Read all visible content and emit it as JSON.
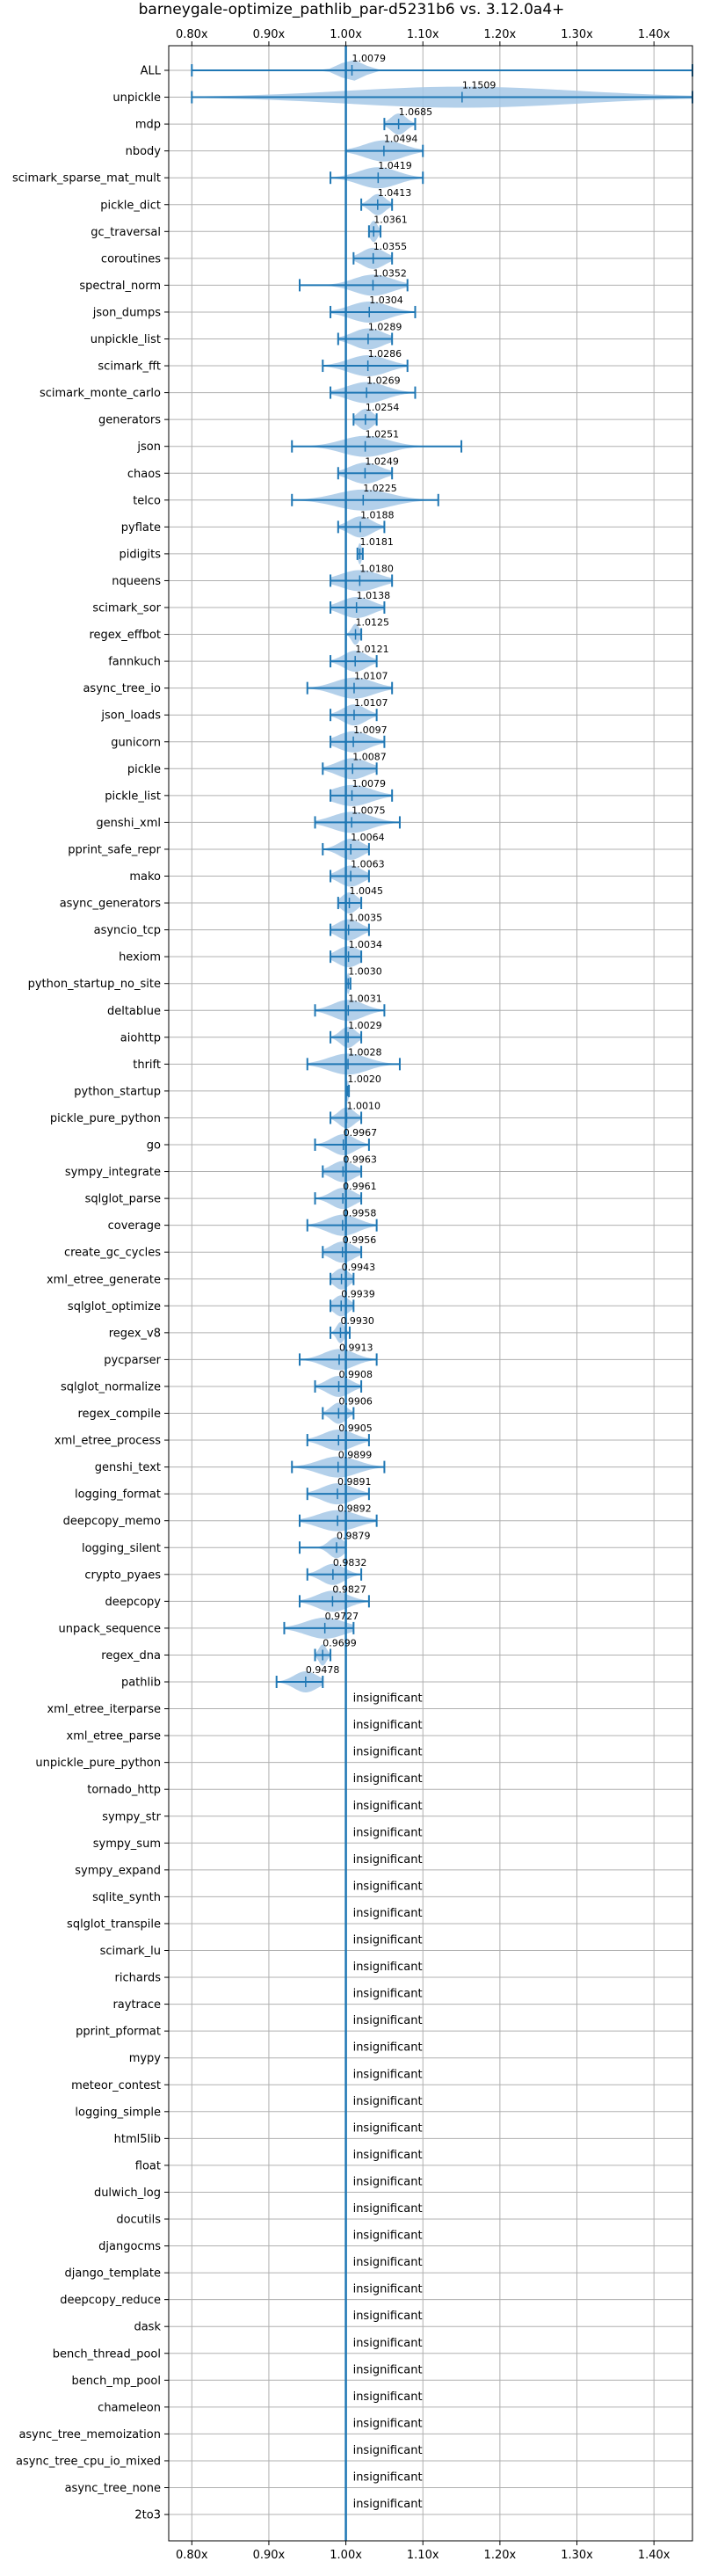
{
  "chart_data": {
    "type": "violin",
    "title": "barneygale-optimize_pathlib_par-d5231b6 vs. 3.12.0a4+",
    "xlim": [
      0.77,
      1.45
    ],
    "x_ticks": [
      0.8,
      0.9,
      1.0,
      1.1,
      1.2,
      1.3,
      1.4
    ],
    "x_tick_labels": [
      "0.80x",
      "0.90x",
      "1.00x",
      "1.10x",
      "1.20x",
      "1.30x",
      "1.40x"
    ],
    "reference_line": 1.0,
    "grid": true,
    "color": "#1f77b4",
    "fill_color": "#a6c8e6",
    "benchmarks": [
      {
        "name": "ALL",
        "value": 1.0079,
        "label": "1.0079",
        "min": 0.8,
        "max": 1.45,
        "spread": 0.03
      },
      {
        "name": "unpickle",
        "value": 1.1509,
        "label": "1.1509",
        "min": 0.8,
        "max": 1.45,
        "spread": 0.3
      },
      {
        "name": "mdp",
        "value": 1.0685,
        "label": "1.0685",
        "min": 1.05,
        "max": 1.09,
        "spread": 0.02
      },
      {
        "name": "nbody",
        "value": 1.0494,
        "label": "1.0494",
        "min": 1.0,
        "max": 1.1,
        "spread": 0.05
      },
      {
        "name": "scimark_sparse_mat_mult",
        "value": 1.0419,
        "label": "1.0419",
        "min": 0.98,
        "max": 1.1,
        "spread": 0.05
      },
      {
        "name": "pickle_dict",
        "value": 1.0413,
        "label": "1.0413",
        "min": 1.02,
        "max": 1.06,
        "spread": 0.02
      },
      {
        "name": "gc_traversal",
        "value": 1.0361,
        "label": "1.0361",
        "min": 1.03,
        "max": 1.045,
        "spread": 0.01
      },
      {
        "name": "coroutines",
        "value": 1.0355,
        "label": "1.0355",
        "min": 1.01,
        "max": 1.06,
        "spread": 0.03
      },
      {
        "name": "spectral_norm",
        "value": 1.0352,
        "label": "1.0352",
        "min": 0.94,
        "max": 1.08,
        "spread": 0.05
      },
      {
        "name": "json_dumps",
        "value": 1.0304,
        "label": "1.0304",
        "min": 0.98,
        "max": 1.09,
        "spread": 0.05
      },
      {
        "name": "unpickle_list",
        "value": 1.0289,
        "label": "1.0289",
        "min": 0.99,
        "max": 1.06,
        "spread": 0.04
      },
      {
        "name": "scimark_fft",
        "value": 1.0286,
        "label": "1.0286",
        "min": 0.97,
        "max": 1.08,
        "spread": 0.05
      },
      {
        "name": "scimark_monte_carlo",
        "value": 1.0269,
        "label": "1.0269",
        "min": 0.98,
        "max": 1.09,
        "spread": 0.05
      },
      {
        "name": "generators",
        "value": 1.0254,
        "label": "1.0254",
        "min": 1.01,
        "max": 1.04,
        "spread": 0.02
      },
      {
        "name": "json",
        "value": 1.0251,
        "label": "1.0251",
        "min": 0.93,
        "max": 1.15,
        "spread": 0.06
      },
      {
        "name": "chaos",
        "value": 1.0249,
        "label": "1.0249",
        "min": 0.99,
        "max": 1.06,
        "spread": 0.04
      },
      {
        "name": "telco",
        "value": 1.0225,
        "label": "1.0225",
        "min": 0.93,
        "max": 1.12,
        "spread": 0.07
      },
      {
        "name": "pyflate",
        "value": 1.0188,
        "label": "1.0188",
        "min": 0.99,
        "max": 1.05,
        "spread": 0.03
      },
      {
        "name": "pidigits",
        "value": 1.0181,
        "label": "1.0181",
        "min": 1.015,
        "max": 1.022,
        "spread": 0.005
      },
      {
        "name": "nqueens",
        "value": 1.018,
        "label": "1.0180",
        "min": 0.98,
        "max": 1.06,
        "spread": 0.05
      },
      {
        "name": "scimark_sor",
        "value": 1.0138,
        "label": "1.0138",
        "min": 0.98,
        "max": 1.05,
        "spread": 0.04
      },
      {
        "name": "regex_effbot",
        "value": 1.0125,
        "label": "1.0125",
        "min": 1.0,
        "max": 1.02,
        "spread": 0.01
      },
      {
        "name": "fannkuch",
        "value": 1.0121,
        "label": "1.0121",
        "min": 0.98,
        "max": 1.04,
        "spread": 0.03
      },
      {
        "name": "async_tree_io",
        "value": 1.0107,
        "label": "1.0107",
        "min": 0.95,
        "max": 1.06,
        "spread": 0.05
      },
      {
        "name": "json_loads",
        "value": 1.0107,
        "label": "1.0107",
        "min": 0.98,
        "max": 1.04,
        "spread": 0.03
      },
      {
        "name": "gunicorn",
        "value": 1.0097,
        "label": "1.0097",
        "min": 0.98,
        "max": 1.05,
        "spread": 0.04
      },
      {
        "name": "pickle",
        "value": 1.0087,
        "label": "1.0087",
        "min": 0.97,
        "max": 1.04,
        "spread": 0.04
      },
      {
        "name": "pickle_list",
        "value": 1.0079,
        "label": "1.0079",
        "min": 0.98,
        "max": 1.06,
        "spread": 0.05
      },
      {
        "name": "genshi_xml",
        "value": 1.0075,
        "label": "1.0075",
        "min": 0.96,
        "max": 1.07,
        "spread": 0.05
      },
      {
        "name": "pprint_safe_repr",
        "value": 1.0064,
        "label": "1.0064",
        "min": 0.97,
        "max": 1.03,
        "spread": 0.03
      },
      {
        "name": "mako",
        "value": 1.0063,
        "label": "1.0063",
        "min": 0.98,
        "max": 1.03,
        "spread": 0.03
      },
      {
        "name": "async_generators",
        "value": 1.0045,
        "label": "1.0045",
        "min": 0.99,
        "max": 1.02,
        "spread": 0.02
      },
      {
        "name": "asyncio_tcp",
        "value": 1.0035,
        "label": "1.0035",
        "min": 0.98,
        "max": 1.03,
        "spread": 0.03
      },
      {
        "name": "hexiom",
        "value": 1.0034,
        "label": "1.0034",
        "min": 0.98,
        "max": 1.02,
        "spread": 0.03
      },
      {
        "name": "python_startup_no_site",
        "value": 1.003,
        "label": "1.0030",
        "min": 1.0,
        "max": 1.006,
        "spread": 0.004
      },
      {
        "name": "deltablue",
        "value": 1.0031,
        "label": "1.0031",
        "min": 0.96,
        "max": 1.05,
        "spread": 0.04
      },
      {
        "name": "aiohttp",
        "value": 1.0029,
        "label": "1.0029",
        "min": 0.98,
        "max": 1.02,
        "spread": 0.02
      },
      {
        "name": "thrift",
        "value": 1.0028,
        "label": "1.0028",
        "min": 0.95,
        "max": 1.07,
        "spread": 0.05
      },
      {
        "name": "python_startup",
        "value": 1.002,
        "label": "1.0020",
        "min": 1.0,
        "max": 1.004,
        "spread": 0.003
      },
      {
        "name": "pickle_pure_python",
        "value": 1.001,
        "label": "1.0010",
        "min": 0.98,
        "max": 1.02,
        "spread": 0.02
      },
      {
        "name": "go",
        "value": 0.9967,
        "label": "0.9967",
        "min": 0.96,
        "max": 1.03,
        "spread": 0.03
      },
      {
        "name": "sympy_integrate",
        "value": 0.9963,
        "label": "0.9963",
        "min": 0.97,
        "max": 1.02,
        "spread": 0.03
      },
      {
        "name": "sqlglot_parse",
        "value": 0.9961,
        "label": "0.9961",
        "min": 0.96,
        "max": 1.02,
        "spread": 0.03
      },
      {
        "name": "coverage",
        "value": 0.9958,
        "label": "0.9958",
        "min": 0.95,
        "max": 1.04,
        "spread": 0.04
      },
      {
        "name": "create_gc_cycles",
        "value": 0.9956,
        "label": "0.9956",
        "min": 0.97,
        "max": 1.02,
        "spread": 0.03
      },
      {
        "name": "xml_etree_generate",
        "value": 0.9943,
        "label": "0.9943",
        "min": 0.98,
        "max": 1.01,
        "spread": 0.02
      },
      {
        "name": "sqlglot_optimize",
        "value": 0.9939,
        "label": "0.9939",
        "min": 0.98,
        "max": 1.01,
        "spread": 0.02
      },
      {
        "name": "regex_v8",
        "value": 0.993,
        "label": "0.9930",
        "min": 0.98,
        "max": 1.005,
        "spread": 0.01
      },
      {
        "name": "pycparser",
        "value": 0.9913,
        "label": "0.9913",
        "min": 0.94,
        "max": 1.04,
        "spread": 0.04
      },
      {
        "name": "sqlglot_normalize",
        "value": 0.9908,
        "label": "0.9908",
        "min": 0.96,
        "max": 1.02,
        "spread": 0.03
      },
      {
        "name": "regex_compile",
        "value": 0.9906,
        "label": "0.9906",
        "min": 0.97,
        "max": 1.01,
        "spread": 0.02
      },
      {
        "name": "xml_etree_process",
        "value": 0.9905,
        "label": "0.9905",
        "min": 0.95,
        "max": 1.03,
        "spread": 0.04
      },
      {
        "name": "genshi_text",
        "value": 0.9899,
        "label": "0.9899",
        "min": 0.93,
        "max": 1.05,
        "spread": 0.05
      },
      {
        "name": "logging_format",
        "value": 0.9891,
        "label": "0.9891",
        "min": 0.95,
        "max": 1.03,
        "spread": 0.04
      },
      {
        "name": "deepcopy_memo",
        "value": 0.9892,
        "label": "0.9892",
        "min": 0.94,
        "max": 1.04,
        "spread": 0.05
      },
      {
        "name": "logging_silent",
        "value": 0.9879,
        "label": "0.9879",
        "min": 0.94,
        "max": 1.0,
        "spread": 0.02
      },
      {
        "name": "crypto_pyaes",
        "value": 0.9832,
        "label": "0.9832",
        "min": 0.95,
        "max": 1.02,
        "spread": 0.03
      },
      {
        "name": "deepcopy",
        "value": 0.9827,
        "label": "0.9827",
        "min": 0.94,
        "max": 1.03,
        "spread": 0.04
      },
      {
        "name": "unpack_sequence",
        "value": 0.9727,
        "label": "0.9727",
        "min": 0.92,
        "max": 1.01,
        "spread": 0.05
      },
      {
        "name": "regex_dna",
        "value": 0.9699,
        "label": "0.9699",
        "min": 0.96,
        "max": 0.98,
        "spread": 0.01
      },
      {
        "name": "pathlib",
        "value": 0.9478,
        "label": "0.9478",
        "min": 0.91,
        "max": 0.97,
        "spread": 0.03
      },
      {
        "name": "xml_etree_iterparse",
        "value": null,
        "label": "insignificant"
      },
      {
        "name": "xml_etree_parse",
        "value": null,
        "label": "insignificant"
      },
      {
        "name": "unpickle_pure_python",
        "value": null,
        "label": "insignificant"
      },
      {
        "name": "tornado_http",
        "value": null,
        "label": "insignificant"
      },
      {
        "name": "sympy_str",
        "value": null,
        "label": "insignificant"
      },
      {
        "name": "sympy_sum",
        "value": null,
        "label": "insignificant"
      },
      {
        "name": "sympy_expand",
        "value": null,
        "label": "insignificant"
      },
      {
        "name": "sqlite_synth",
        "value": null,
        "label": "insignificant"
      },
      {
        "name": "sqlglot_transpile",
        "value": null,
        "label": "insignificant"
      },
      {
        "name": "scimark_lu",
        "value": null,
        "label": "insignificant"
      },
      {
        "name": "richards",
        "value": null,
        "label": "insignificant"
      },
      {
        "name": "raytrace",
        "value": null,
        "label": "insignificant"
      },
      {
        "name": "pprint_pformat",
        "value": null,
        "label": "insignificant"
      },
      {
        "name": "mypy",
        "value": null,
        "label": "insignificant"
      },
      {
        "name": "meteor_contest",
        "value": null,
        "label": "insignificant"
      },
      {
        "name": "logging_simple",
        "value": null,
        "label": "insignificant"
      },
      {
        "name": "html5lib",
        "value": null,
        "label": "insignificant"
      },
      {
        "name": "float",
        "value": null,
        "label": "insignificant"
      },
      {
        "name": "dulwich_log",
        "value": null,
        "label": "insignificant"
      },
      {
        "name": "docutils",
        "value": null,
        "label": "insignificant"
      },
      {
        "name": "djangocms",
        "value": null,
        "label": "insignificant"
      },
      {
        "name": "django_template",
        "value": null,
        "label": "insignificant"
      },
      {
        "name": "deepcopy_reduce",
        "value": null,
        "label": "insignificant"
      },
      {
        "name": "dask",
        "value": null,
        "label": "insignificant"
      },
      {
        "name": "bench_thread_pool",
        "value": null,
        "label": "insignificant"
      },
      {
        "name": "bench_mp_pool",
        "value": null,
        "label": "insignificant"
      },
      {
        "name": "chameleon",
        "value": null,
        "label": "insignificant"
      },
      {
        "name": "async_tree_memoization",
        "value": null,
        "label": "insignificant"
      },
      {
        "name": "async_tree_cpu_io_mixed",
        "value": null,
        "label": "insignificant"
      },
      {
        "name": "async_tree_none",
        "value": null,
        "label": "insignificant"
      },
      {
        "name": "2to3",
        "value": null,
        "label": "insignificant"
      }
    ]
  }
}
